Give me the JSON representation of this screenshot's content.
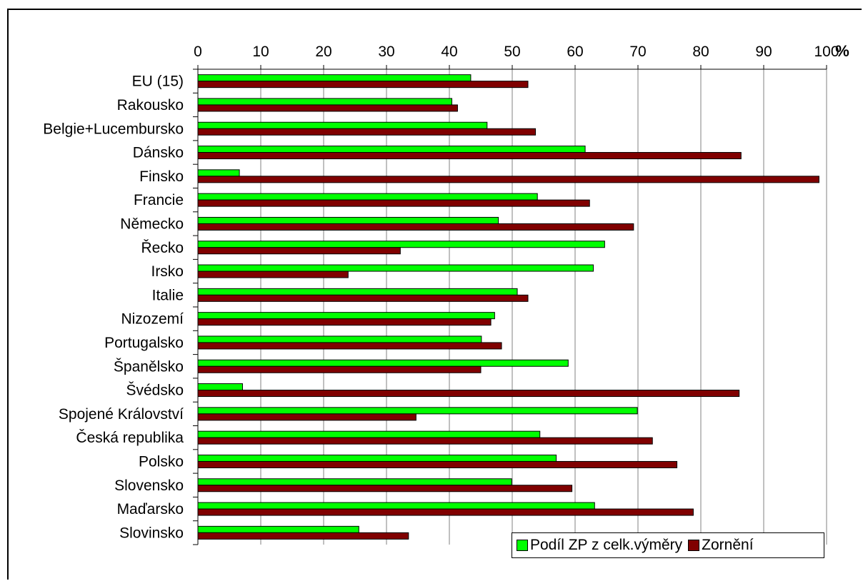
{
  "chart_data": {
    "type": "bar",
    "orientation": "horizontal",
    "unit_label": "%",
    "xlim": [
      0,
      100
    ],
    "x_ticks": [
      "0",
      "10",
      "20",
      "30",
      "40",
      "50",
      "60",
      "70",
      "80",
      "90",
      "100"
    ],
    "grid": true,
    "legend_position": "bottom-right",
    "categories": [
      "EU (15)",
      "Rakousko",
      "Belgie+Lucembursko",
      "Dánsko",
      "Finsko",
      "Francie",
      "Německo",
      "Řecko",
      "Irsko",
      "Italie",
      "Nizozemí",
      "Portugalsko",
      "Španělsko",
      "Švédsko",
      "Spojené Království",
      "Česká republika",
      "Polsko",
      "Slovensko",
      "Maďarsko",
      "Slovinsko"
    ],
    "series": [
      {
        "name": "Podíl ZP z celk.výměry",
        "color": "#00ff00",
        "values": [
          43.4,
          40.4,
          46.0,
          61.6,
          6.6,
          54.0,
          47.8,
          64.7,
          62.9,
          50.8,
          47.2,
          45.1,
          58.9,
          7.1,
          69.9,
          54.4,
          57.0,
          49.9,
          63.1,
          25.6
        ]
      },
      {
        "name": "Zornění",
        "color": "#800000",
        "values": [
          52.5,
          41.3,
          53.7,
          86.4,
          98.8,
          62.3,
          69.3,
          32.2,
          23.9,
          52.5,
          46.6,
          48.3,
          45.0,
          86.1,
          34.7,
          72.3,
          76.2,
          59.5,
          78.8,
          33.5
        ]
      }
    ]
  }
}
